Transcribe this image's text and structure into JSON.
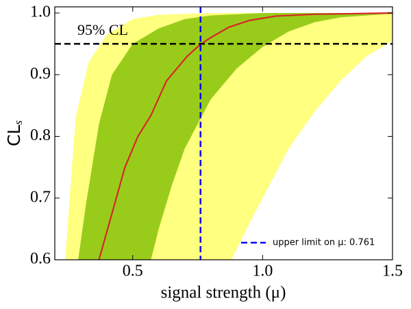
{
  "chart_data": {
    "type": "line",
    "xlabel": "signal strength (μ)",
    "ylabel": {
      "text": "CL",
      "subscript": "s"
    },
    "xlim": [
      0.2,
      1.5
    ],
    "ylim": [
      0.6,
      1.01
    ],
    "xticks": [
      0.5,
      {
        "value": 1,
        "label": "1.0"
      },
      1.5
    ],
    "yticks": [
      0.6,
      0.7,
      0.8,
      0.9,
      {
        "value": 1,
        "label": "1.0"
      }
    ],
    "bands": [
      {
        "color": "#ffff80",
        "upper": {
          "x": [
            0.24,
            0.28,
            0.33,
            0.4,
            0.5,
            0.6,
            0.8,
            1.5
          ],
          "values": [
            0.6,
            0.83,
            0.92,
            0.965,
            0.99,
            0.997,
            1.0,
            1.0
          ]
        },
        "lower": {
          "x": [
            0.88,
            0.95,
            1.0,
            1.1,
            1.2,
            1.3,
            1.4,
            1.5
          ],
          "values": [
            0.6,
            0.66,
            0.7,
            0.78,
            0.84,
            0.89,
            0.93,
            0.955
          ]
        }
      },
      {
        "color": "#99cc1a",
        "upper": {
          "x": [
            0.29,
            0.32,
            0.37,
            0.42,
            0.5,
            0.6,
            0.7,
            0.8,
            1.0,
            1.5
          ],
          "values": [
            0.6,
            0.69,
            0.82,
            0.9,
            0.95,
            0.975,
            0.99,
            0.996,
            1.0,
            1.0
          ]
        },
        "lower": {
          "x": [
            0.57,
            0.6,
            0.65,
            0.7,
            0.8,
            0.9,
            1.0,
            1.1,
            1.2,
            1.3,
            1.5
          ],
          "values": [
            0.6,
            0.65,
            0.72,
            0.78,
            0.86,
            0.91,
            0.945,
            0.97,
            0.985,
            0.993,
            0.999
          ]
        }
      }
    ],
    "series": [
      {
        "color": "#d62728",
        "x": [
          0.37,
          0.39,
          0.43,
          0.47,
          0.52,
          0.57,
          0.63,
          0.71,
          0.76,
          0.8,
          0.87,
          0.95,
          1.05,
          1.2,
          1.5
        ],
        "values": [
          0.6,
          0.63,
          0.69,
          0.75,
          0.8,
          0.834,
          0.89,
          0.93,
          0.949,
          0.96,
          0.977,
          0.988,
          0.995,
          0.998,
          1.0
        ]
      }
    ],
    "hline": {
      "value": 0.95,
      "label": "95% CL",
      "color": "#000000"
    },
    "vline": {
      "value": 0.761,
      "name": "upper limit on μ: 0.761",
      "color": "#0000ff"
    },
    "legend": "lower right"
  }
}
